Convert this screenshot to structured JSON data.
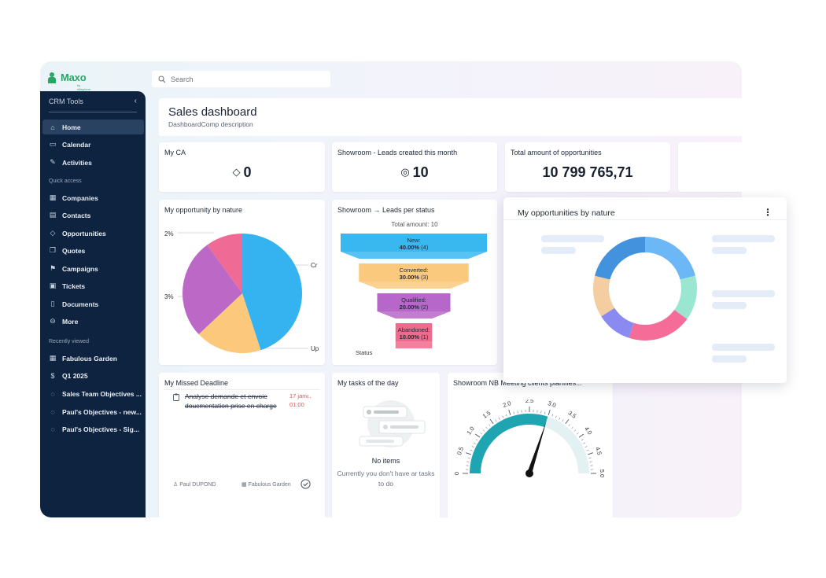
{
  "brand": {
    "name": "Maxo",
    "sub": "by ellisphere"
  },
  "search": {
    "placeholder": "Search"
  },
  "sidebar": {
    "header": "CRM Tools",
    "items": [
      {
        "label": "Home",
        "icon": "home-icon"
      },
      {
        "label": "Calendar",
        "icon": "calendar-icon"
      },
      {
        "label": "Activities",
        "icon": "activities-icon"
      }
    ],
    "quick_access_title": "Quick access",
    "quick_access": [
      {
        "label": "Companies",
        "icon": "building-icon"
      },
      {
        "label": "Contacts",
        "icon": "contacts-icon"
      },
      {
        "label": "Opportunities",
        "icon": "diamond-icon"
      },
      {
        "label": "Quotes",
        "icon": "quote-icon"
      },
      {
        "label": "Campaigns",
        "icon": "campaign-icon"
      },
      {
        "label": "Tickets",
        "icon": "ticket-icon"
      },
      {
        "label": "Documents",
        "icon": "document-icon"
      },
      {
        "label": "More",
        "icon": "more-icon"
      }
    ],
    "recent_title": "Recently viewed",
    "recent": [
      {
        "label": "Fabulous Garden",
        "icon": "building-icon"
      },
      {
        "label": "Q1 2025",
        "icon": "dollar-icon"
      },
      {
        "label": "Sales Team Objectives ...",
        "icon": "target-icon"
      },
      {
        "label": "Paul's Objectives - new...",
        "icon": "target-icon"
      },
      {
        "label": "Paul's Objectives - Sig...",
        "icon": "target-icon"
      }
    ]
  },
  "page": {
    "title": "Sales dashboard",
    "description": "DashboardComp description"
  },
  "kpis": [
    {
      "title": "My CA",
      "value": "0",
      "icon": "diamond-icon"
    },
    {
      "title": "Showroom - Leads created this month",
      "value": "10",
      "icon": "target-icon"
    },
    {
      "title": "Total amount of opportunities",
      "value": "10 799 765,71"
    }
  ],
  "pie_card": {
    "title": "My opportunity by nature",
    "labels": [
      "2%",
      "3%",
      "Cr",
      "Up"
    ]
  },
  "funnel_card": {
    "title": "Showroom → Leads per status",
    "total": "Total amount: 10",
    "xlabel": "Status",
    "stages": [
      {
        "name": "New:",
        "pct": "40.00%",
        "count": "(4)",
        "color": "#39b8f0"
      },
      {
        "name": "Converted:",
        "pct": "30.00%",
        "count": "(3)",
        "color": "#fbc97e"
      },
      {
        "name": "Qualified:",
        "pct": "20.00%",
        "count": "(2)",
        "color": "#b766c9"
      },
      {
        "name": "Abandoned:",
        "pct": "10.00%",
        "count": "(1)",
        "color": "#f06a8e"
      }
    ]
  },
  "popup": {
    "title": "My opportunities by nature"
  },
  "missed": {
    "title": "My Missed Deadline",
    "task": {
      "text": "Analyse demande et envoie doucmentation prise en charge",
      "date": "17 janv., 01:00",
      "owner": "Paul DUPOND",
      "company": "Fabulous Garden"
    }
  },
  "tasks": {
    "title": "My tasks of the day",
    "empty_title": "No items",
    "empty_sub": "Currently you don't have ar tasks to do"
  },
  "gauge": {
    "title": "Showroom NB Meeting clients planifiés...",
    "ticks": [
      "0",
      "0.5",
      "1.0",
      "1.5",
      "2.0",
      "2.5",
      "3.0",
      "3.5",
      "4.0",
      "4.5",
      "5.0"
    ],
    "min": 0,
    "max": 5,
    "value": 3.0
  },
  "chart_data": [
    {
      "type": "pie",
      "title": "My opportunity by nature",
      "slices": [
        {
          "label": "Cr",
          "value": 45,
          "color": "#35b3f0"
        },
        {
          "label": "Up",
          "value": 18,
          "color": "#fcc97c"
        },
        {
          "label": "3%",
          "value": 27,
          "color": "#bb68c7"
        },
        {
          "label": "2%",
          "value": 10,
          "color": "#f06a96"
        }
      ]
    },
    {
      "type": "bar",
      "title": "Showroom → Leads per status",
      "categories": [
        "New",
        "Converted",
        "Qualified",
        "Abandoned"
      ],
      "values": [
        4,
        3,
        2,
        1
      ],
      "xlabel": "Status"
    },
    {
      "type": "pie",
      "title": "My opportunities by nature",
      "slices": [
        {
          "value": 21,
          "color": "#6cb7f5"
        },
        {
          "value": 14,
          "color": "#9ae6d1"
        },
        {
          "value": 20,
          "color": "#f46c97"
        },
        {
          "value": 11,
          "color": "#8a8af0"
        },
        {
          "value": 13,
          "color": "#f4cda1"
        },
        {
          "value": 21,
          "color": "#4292dd"
        }
      ]
    },
    {
      "type": "gauge",
      "title": "Showroom NB Meeting clients planifiés...",
      "min": 0,
      "max": 5,
      "value": 3.0
    }
  ]
}
